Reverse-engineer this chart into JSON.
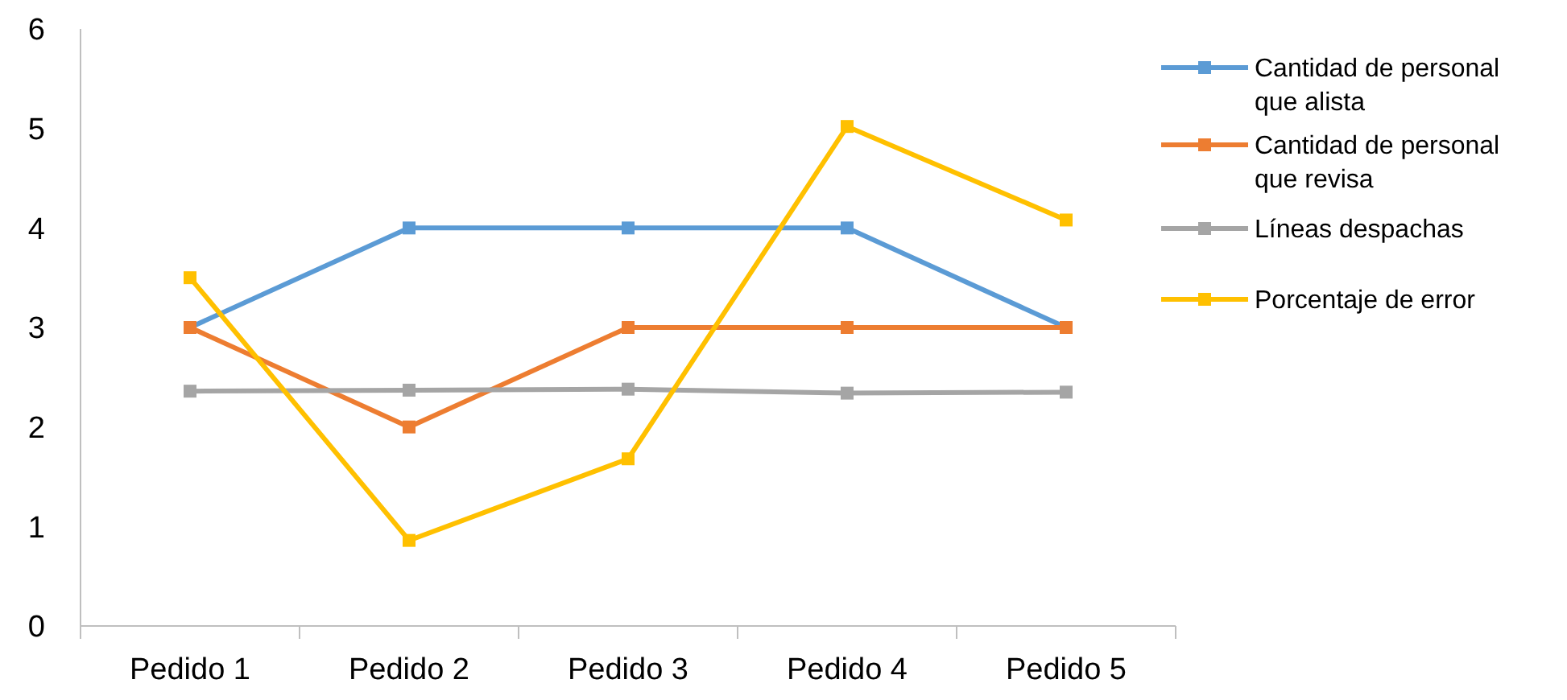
{
  "chart_data": {
    "type": "line",
    "categories": [
      "Pedido 1",
      "Pedido 2",
      "Pedido 3",
      "Pedido 4",
      "Pedido 5"
    ],
    "ylim": [
      0,
      6
    ],
    "yticks": [
      0,
      1,
      2,
      3,
      4,
      5,
      6
    ],
    "grid": false,
    "legend": "right",
    "marker": "square",
    "line_style": "solid",
    "series": [
      {
        "name": "Cantidad de personal que alista",
        "color": "#5b9bd5",
        "values": [
          3,
          4,
          4,
          4,
          3
        ]
      },
      {
        "name": "Cantidad de personal que revisa",
        "color": "#ed7d31",
        "values": [
          3,
          2,
          3,
          3,
          3
        ]
      },
      {
        "name": "Líneas despachas",
        "color": "#a5a5a5",
        "values": [
          2.36,
          2.37,
          2.38,
          2.34,
          2.35
        ]
      },
      {
        "name": "Porcentaje de error",
        "color": "#ffc000",
        "values": [
          3.5,
          0.86,
          1.68,
          5.02,
          4.08
        ]
      }
    ]
  }
}
